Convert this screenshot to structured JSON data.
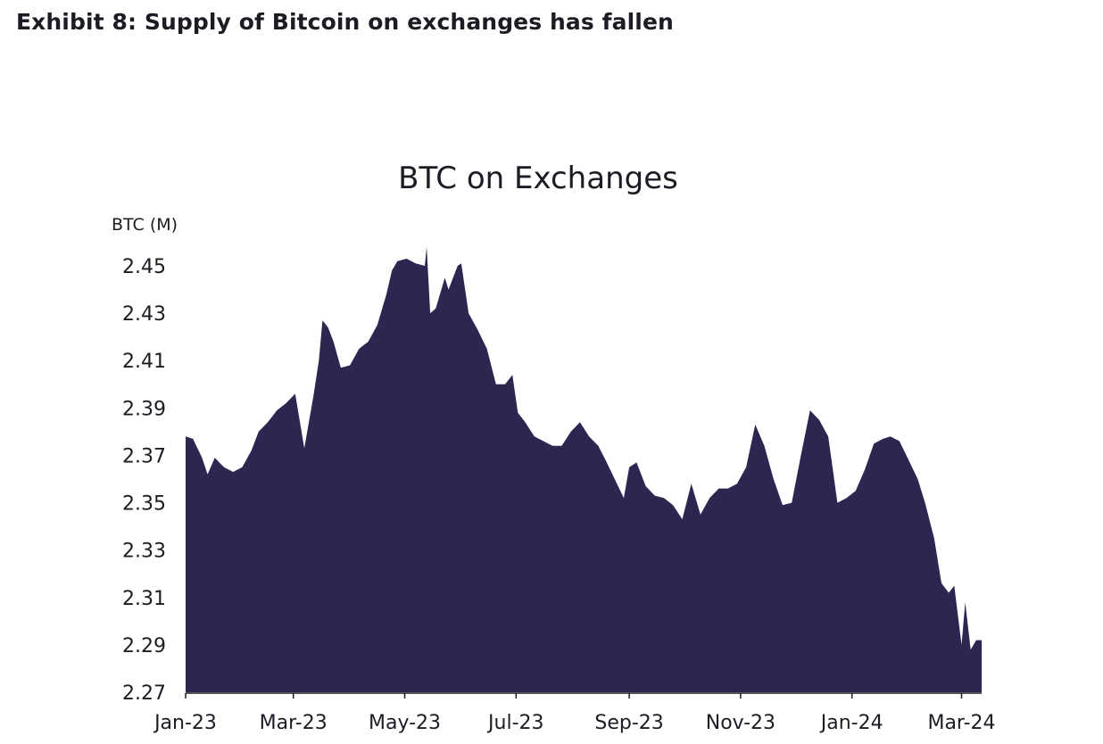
{
  "exhibit": {
    "title": "Exhibit 8: Supply of Bitcoin on exchanges has fallen"
  },
  "chart_data": {
    "type": "area",
    "title": "BTC on Exchanges",
    "ylabel": "BTC (M)",
    "xlabel": "",
    "ylim": [
      2.27,
      2.45
    ],
    "yticks": [
      "2.45",
      "2.43",
      "2.41",
      "2.39",
      "2.37",
      "2.35",
      "2.33",
      "2.31",
      "2.29",
      "2.27"
    ],
    "xticks": [
      "Jan-23",
      "Mar-23",
      "May-23",
      "Jul-23",
      "Sep-23",
      "Nov-23",
      "Jan-24",
      "Mar-24"
    ],
    "xtick_dates": [
      "2023-01-01",
      "2023-03-01",
      "2023-05-01",
      "2023-07-01",
      "2023-09-01",
      "2023-11-01",
      "2024-01-01",
      "2024-03-01"
    ],
    "xlim": [
      "2023-01-01",
      "2024-03-12"
    ],
    "grid": false,
    "legend": "none",
    "color": "#2e2550",
    "series": [
      {
        "x": [
          "2023-01-01",
          "2023-01-05",
          "2023-01-10",
          "2023-01-13",
          "2023-01-17",
          "2023-01-22",
          "2023-01-27",
          "2023-02-01",
          "2023-02-06",
          "2023-02-10",
          "2023-02-15",
          "2023-02-20",
          "2023-02-25",
          "2023-03-02",
          "2023-03-07",
          "2023-03-12",
          "2023-03-15",
          "2023-03-17",
          "2023-03-20",
          "2023-03-23",
          "2023-03-27",
          "2023-04-01",
          "2023-04-06",
          "2023-04-11",
          "2023-04-16",
          "2023-04-21",
          "2023-04-24",
          "2023-04-27",
          "2023-05-02",
          "2023-05-07",
          "2023-05-12",
          "2023-05-13",
          "2023-05-15",
          "2023-05-18",
          "2023-05-23",
          "2023-05-25",
          "2023-05-30",
          "2023-06-01",
          "2023-06-05",
          "2023-06-10",
          "2023-06-15",
          "2023-06-20",
          "2023-06-25",
          "2023-06-29",
          "2023-07-02",
          "2023-07-06",
          "2023-07-11",
          "2023-07-16",
          "2023-07-21",
          "2023-07-26",
          "2023-07-31",
          "2023-08-05",
          "2023-08-10",
          "2023-08-15",
          "2023-08-19",
          "2023-08-24",
          "2023-08-29",
          "2023-09-01",
          "2023-09-05",
          "2023-09-10",
          "2023-09-15",
          "2023-09-20",
          "2023-09-25",
          "2023-09-30",
          "2023-10-05",
          "2023-10-10",
          "2023-10-15",
          "2023-10-20",
          "2023-10-25",
          "2023-10-30",
          "2023-11-04",
          "2023-11-09",
          "2023-11-14",
          "2023-11-19",
          "2023-11-24",
          "2023-11-29",
          "2023-12-04",
          "2023-12-09",
          "2023-12-14",
          "2023-12-19",
          "2023-12-24",
          "2023-12-29",
          "2024-01-03",
          "2024-01-08",
          "2024-01-13",
          "2024-01-18",
          "2024-01-22",
          "2024-01-27",
          "2024-02-01",
          "2024-02-06",
          "2024-02-10",
          "2024-02-15",
          "2024-02-19",
          "2024-02-23",
          "2024-02-26",
          "2024-03-01",
          "2024-03-03",
          "2024-03-06",
          "2024-03-09",
          "2024-03-12"
        ],
        "values": [
          2.378,
          2.377,
          2.369,
          2.362,
          2.369,
          2.365,
          2.363,
          2.365,
          2.372,
          2.38,
          2.384,
          2.389,
          2.392,
          2.396,
          2.373,
          2.395,
          2.41,
          2.427,
          2.424,
          2.418,
          2.407,
          2.408,
          2.415,
          2.418,
          2.425,
          2.438,
          2.448,
          2.452,
          2.453,
          2.451,
          2.45,
          2.458,
          2.43,
          2.432,
          2.445,
          2.44,
          2.45,
          2.451,
          2.43,
          2.423,
          2.415,
          2.4,
          2.4,
          2.404,
          2.388,
          2.384,
          2.378,
          2.376,
          2.374,
          2.374,
          2.38,
          2.384,
          2.378,
          2.374,
          2.368,
          2.36,
          2.352,
          2.365,
          2.367,
          2.357,
          2.353,
          2.352,
          2.349,
          2.343,
          2.358,
          2.345,
          2.352,
          2.356,
          2.356,
          2.358,
          2.365,
          2.383,
          2.374,
          2.36,
          2.349,
          2.35,
          2.37,
          2.389,
          2.385,
          2.378,
          2.35,
          2.352,
          2.355,
          2.364,
          2.375,
          2.377,
          2.378,
          2.376,
          2.368,
          2.36,
          2.35,
          2.335,
          2.316,
          2.312,
          2.315,
          2.29,
          2.308,
          2.288,
          2.292,
          2.292
        ]
      }
    ]
  }
}
